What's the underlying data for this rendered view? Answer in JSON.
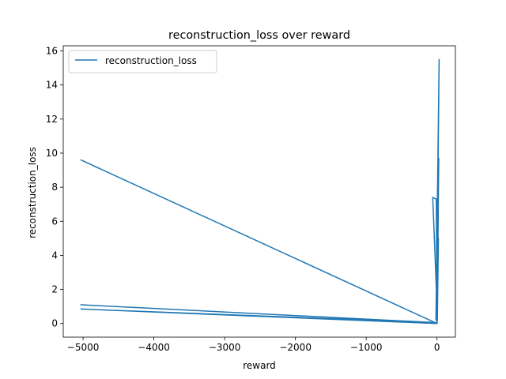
{
  "chart_data": {
    "type": "line",
    "title": "reconstruction_loss over reward",
    "xlabel": "reward",
    "ylabel": "reconstruction_loss",
    "xlim": [
      -5280,
      260
    ],
    "ylim": [
      -0.8,
      16.3
    ],
    "xticks": [
      -5000,
      -4000,
      -3000,
      -2000,
      -1000,
      0
    ],
    "xtick_labels": [
      "−5000",
      "−4000",
      "−3000",
      "−2000",
      "−1000",
      "0"
    ],
    "yticks": [
      0,
      2,
      4,
      6,
      8,
      10,
      12,
      14,
      16
    ],
    "ytick_labels": [
      "0",
      "2",
      "4",
      "6",
      "8",
      "10",
      "12",
      "14",
      "16"
    ],
    "grid": false,
    "legend_position": "top-left",
    "series": [
      {
        "name": "reconstruction_loss",
        "color": "#1f77b4",
        "x": [
          -5030,
          0,
          -5030,
          0,
          -5030,
          0,
          -10,
          -60,
          5,
          20,
          -15,
          30,
          -5,
          15,
          25,
          0,
          10,
          0,
          20,
          5,
          0
        ],
        "y": [
          1.1,
          0.05,
          0.85,
          0.0,
          9.6,
          0.0,
          7.3,
          7.4,
          0.5,
          7.7,
          0.2,
          15.5,
          1.0,
          9.6,
          9.7,
          0.4,
          6.6,
          0.1,
          5.0,
          0.2,
          0.0
        ]
      }
    ]
  }
}
